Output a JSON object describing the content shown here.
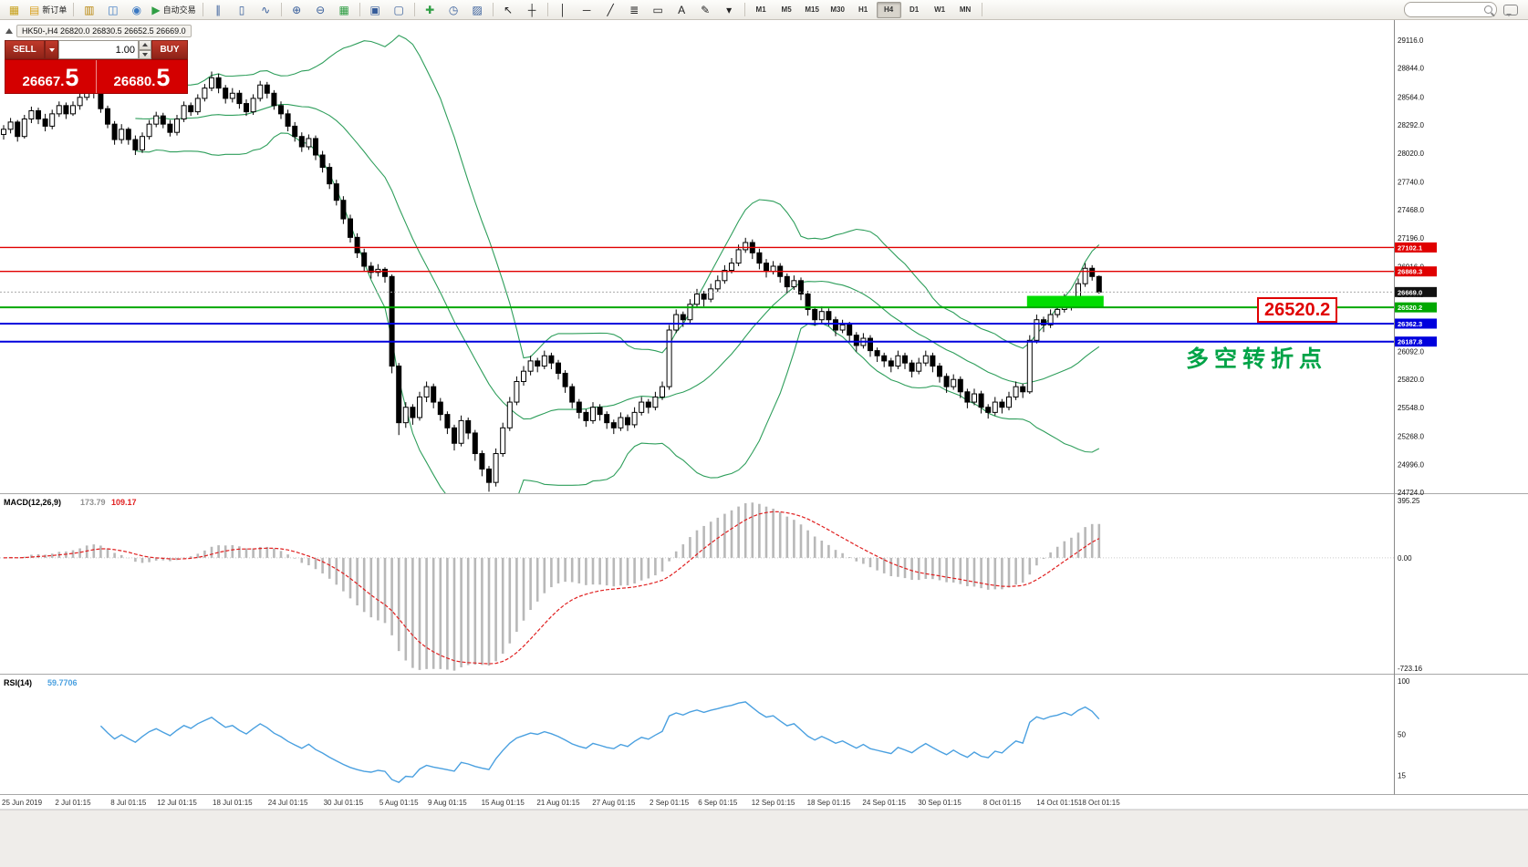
{
  "toolbar": {
    "new_order_label": "新订单",
    "auto_trading_label": "自动交易",
    "timeframes": [
      "M1",
      "M5",
      "M15",
      "M30",
      "H1",
      "H4",
      "D1",
      "W1",
      "MN"
    ],
    "active_timeframe": "H4",
    "items": [
      {
        "type": "btn",
        "name": "app-icon",
        "glyph": "▦",
        "color": "#c8a21e"
      },
      {
        "type": "btn",
        "name": "new-order-button",
        "glyph": "▤",
        "color": "#d8a01e",
        "label": "新订单"
      },
      {
        "type": "sep"
      },
      {
        "type": "btn",
        "name": "profiles-icon",
        "glyph": "▥",
        "color": "#b8860b"
      },
      {
        "type": "btn",
        "name": "market-watch-icon",
        "glyph": "◫",
        "color": "#3a78c2"
      },
      {
        "type": "btn",
        "name": "navigator-icon",
        "glyph": "◉",
        "color": "#3a78c2"
      },
      {
        "type": "btn",
        "name": "auto-trading-button",
        "glyph": "▶",
        "color": "#2f9e44",
        "label": "自动交易"
      },
      {
        "type": "sep"
      },
      {
        "type": "btn",
        "name": "bar-chart-icon",
        "glyph": "∥",
        "color": "#355c9a"
      },
      {
        "type": "btn",
        "name": "candlestick-chart-icon",
        "glyph": "▯",
        "color": "#355c9a"
      },
      {
        "type": "btn",
        "name": "line-chart-icon",
        "glyph": "∿",
        "color": "#355c9a"
      },
      {
        "type": "sep"
      },
      {
        "type": "btn",
        "name": "zoom-in-icon",
        "glyph": "⊕",
        "color": "#355c9a"
      },
      {
        "type": "btn",
        "name": "zoom-out-icon",
        "glyph": "⊖",
        "color": "#355c9a"
      },
      {
        "type": "btn",
        "name": "indicators-icon",
        "glyph": "▦",
        "color": "#2f9e44"
      },
      {
        "type": "sep"
      },
      {
        "type": "btn",
        "name": "tile-windows-icon",
        "glyph": "▣",
        "color": "#355c9a"
      },
      {
        "type": "btn",
        "name": "cascade-windows-icon",
        "glyph": "▢",
        "color": "#355c9a"
      },
      {
        "type": "sep"
      },
      {
        "type": "btn",
        "name": "add-indicator-icon",
        "glyph": "✚",
        "color": "#2f9e44"
      },
      {
        "type": "btn",
        "name": "period-icon",
        "glyph": "◷",
        "color": "#355c9a"
      },
      {
        "type": "btn",
        "name": "templates-icon",
        "glyph": "▨",
        "color": "#355c9a"
      },
      {
        "type": "sep"
      },
      {
        "type": "btn",
        "name": "cursor-icon",
        "glyph": "↖",
        "color": "#222"
      },
      {
        "type": "btn",
        "name": "crosshair-icon",
        "glyph": "┼",
        "color": "#222"
      },
      {
        "type": "sep"
      },
      {
        "type": "btn",
        "name": "vertical-line-icon",
        "glyph": "│",
        "color": "#222"
      },
      {
        "type": "btn",
        "name": "horizontal-line-icon",
        "glyph": "─",
        "color": "#222"
      },
      {
        "type": "btn",
        "name": "trendline-icon",
        "glyph": "╱",
        "color": "#222"
      },
      {
        "type": "btn",
        "name": "fibonacci-icon",
        "glyph": "≣",
        "color": "#222"
      },
      {
        "type": "btn",
        "name": "shapes-icon",
        "glyph": "▭",
        "color": "#222"
      },
      {
        "type": "btn",
        "name": "text-icon",
        "glyph": "A",
        "color": "#222"
      },
      {
        "type": "btn",
        "name": "arrow-label-icon",
        "glyph": "✎",
        "color": "#222"
      },
      {
        "type": "btn",
        "name": "objects-dropdown-icon",
        "glyph": "▾",
        "color": "#222"
      },
      {
        "type": "sep"
      },
      {
        "type": "tfs"
      },
      {
        "type": "sep"
      },
      {
        "type": "spacer"
      },
      {
        "type": "search"
      },
      {
        "type": "chat"
      }
    ]
  },
  "chart": {
    "header": {
      "symbol_period": "HK50-,H4",
      "ohlc": "26820.0 26830.5 26652.5 26669.0"
    }
  },
  "one_click": {
    "sell_label": "SELL",
    "buy_label": "BUY",
    "volume": "1.00",
    "sell_price": {
      "main": "26667.",
      "big": "5"
    },
    "buy_price": {
      "main": "26680.",
      "big": "5"
    }
  },
  "annotations": {
    "price_callout": "26520.2",
    "turning_point": "多空转折点"
  },
  "macd_panel": {
    "name": "MACD(12,26,9)",
    "main_value": "173.79",
    "signal_value": "109.17",
    "axis": [
      "395.25",
      "0.00",
      "-723.16"
    ]
  },
  "rsi_panel": {
    "name": "RSI(14)",
    "value": "59.7706",
    "axis": [
      "100",
      "50",
      "15"
    ]
  },
  "chart_data": {
    "type": "candlestick",
    "symbol": "HK50-",
    "timeframe": "H4",
    "last_ohlc": {
      "open": 26820.0,
      "high": 26830.5,
      "low": 26652.5,
      "close": 26669.0
    },
    "current_price": {
      "price": 26669.0,
      "label": "26669.0",
      "color": "#111111"
    },
    "y_axis_ticks": [
      "29116.0",
      "28844.0",
      "28564.0",
      "28292.0",
      "28020.0",
      "27740.0",
      "27468.0",
      "27196.0",
      "26916.0",
      "26644.0",
      "26372.0",
      "26092.0",
      "25820.0",
      "25548.0",
      "25268.0",
      "24996.0",
      "24724.0"
    ],
    "y_range": [
      24724.0,
      29116.0
    ],
    "x_axis_labels": [
      [
        "25 Jun 2019",
        0
      ],
      [
        "2 Jul 01:15",
        10
      ],
      [
        "8 Jul 01:15",
        18
      ],
      [
        "12 Jul 01:15",
        25
      ],
      [
        "18 Jul 01:15",
        33
      ],
      [
        "24 Jul 01:15",
        41
      ],
      [
        "30 Jul 01:15",
        49
      ],
      [
        "5 Aug 01:15",
        57
      ],
      [
        "9 Aug 01:15",
        64
      ],
      [
        "15 Aug 01:15",
        72
      ],
      [
        "21 Aug 01:15",
        80
      ],
      [
        "27 Aug 01:15",
        88
      ],
      [
        "2 Sep 01:15",
        96
      ],
      [
        "6 Sep 01:15",
        103
      ],
      [
        "12 Sep 01:15",
        111
      ],
      [
        "18 Sep 01:15",
        119
      ],
      [
        "24 Sep 01:15",
        127
      ],
      [
        "30 Sep 01:15",
        135
      ],
      [
        "8 Oct 01:15",
        144
      ],
      [
        "14 Oct 01:15",
        152
      ],
      [
        "18 Oct 01:15",
        158
      ]
    ],
    "horizontal_lines": [
      {
        "price": 27102.1,
        "label": "27102.1",
        "color": "#e00000",
        "width": 1.4
      },
      {
        "price": 26869.3,
        "label": "26869.3",
        "color": "#e00000",
        "width": 1.4
      },
      {
        "price": 26520.2,
        "label": "26520.2",
        "color": "#00a800",
        "width": 2
      },
      {
        "price": 26362.3,
        "label": "26362.3",
        "color": "#0000dd",
        "width": 2
      },
      {
        "price": 26187.8,
        "label": "26187.8",
        "color": "#0000dd",
        "width": 2
      }
    ],
    "highlight_zone": {
      "price_from": 26520.2,
      "price_to": 26632,
      "candle_from": 148,
      "candle_to": 159,
      "color": "#00dd00"
    },
    "indicators": {
      "bollinger": {
        "period": 20,
        "deviation": 2,
        "color": "#2e9e5b"
      },
      "macd": {
        "fast": 12,
        "slow": 26,
        "signal": 9,
        "value": 173.79,
        "signal_value": 109.17,
        "scale_max": 395.25,
        "scale_min": -723.16
      },
      "rsi": {
        "period": 14,
        "value": 59.7706
      }
    },
    "candles": [
      [
        28200,
        28290,
        28150,
        28250
      ],
      [
        28250,
        28360,
        28210,
        28320
      ],
      [
        28320,
        28340,
        28130,
        28180
      ],
      [
        28180,
        28390,
        28160,
        28350
      ],
      [
        28350,
        28470,
        28310,
        28430
      ],
      [
        28430,
        28460,
        28300,
        28350
      ],
      [
        28350,
        28400,
        28230,
        28280
      ],
      [
        28280,
        28440,
        28250,
        28400
      ],
      [
        28400,
        28520,
        28370,
        28480
      ],
      [
        28480,
        28510,
        28350,
        28400
      ],
      [
        28400,
        28520,
        28380,
        28480
      ],
      [
        28480,
        28600,
        28440,
        28560
      ],
      [
        28560,
        28720,
        28530,
        28680
      ],
      [
        28680,
        28710,
        28550,
        28600
      ],
      [
        28600,
        28640,
        28410,
        28450
      ],
      [
        28450,
        28480,
        28260,
        28300
      ],
      [
        28300,
        28330,
        28100,
        28150
      ],
      [
        28150,
        28300,
        28110,
        28250
      ],
      [
        28250,
        28270,
        28100,
        28150
      ],
      [
        28150,
        28190,
        28000,
        28050
      ],
      [
        28050,
        28220,
        28020,
        28180
      ],
      [
        28180,
        28340,
        28150,
        28300
      ],
      [
        28300,
        28420,
        28270,
        28380
      ],
      [
        28380,
        28410,
        28260,
        28300
      ],
      [
        28300,
        28340,
        28180,
        28220
      ],
      [
        28220,
        28390,
        28190,
        28350
      ],
      [
        28350,
        28520,
        28320,
        28480
      ],
      [
        28480,
        28510,
        28380,
        28420
      ],
      [
        28420,
        28590,
        28390,
        28550
      ],
      [
        28550,
        28690,
        28520,
        28650
      ],
      [
        28650,
        28810,
        28620,
        28750
      ],
      [
        28750,
        28790,
        28600,
        28650
      ],
      [
        28650,
        28680,
        28500,
        28550
      ],
      [
        28550,
        28650,
        28510,
        28600
      ],
      [
        28600,
        28630,
        28450,
        28500
      ],
      [
        28500,
        28540,
        28380,
        28420
      ],
      [
        28420,
        28590,
        28390,
        28550
      ],
      [
        28550,
        28720,
        28520,
        28680
      ],
      [
        28680,
        28710,
        28550,
        28600
      ],
      [
        28600,
        28630,
        28440,
        28480
      ],
      [
        28480,
        28520,
        28350,
        28400
      ],
      [
        28400,
        28440,
        28230,
        28280
      ],
      [
        28280,
        28320,
        28130,
        28180
      ],
      [
        28180,
        28220,
        28030,
        28080
      ],
      [
        28080,
        28200,
        28050,
        28160
      ],
      [
        28160,
        28190,
        27950,
        28000
      ],
      [
        28000,
        28040,
        27830,
        27880
      ],
      [
        27880,
        27920,
        27670,
        27720
      ],
      [
        27720,
        27760,
        27510,
        27560
      ],
      [
        27560,
        27600,
        27330,
        27380
      ],
      [
        27380,
        27420,
        27150,
        27200
      ],
      [
        27200,
        27240,
        27000,
        27050
      ],
      [
        27050,
        27090,
        26870,
        26920
      ],
      [
        26920,
        26960,
        26800,
        26860
      ],
      [
        26860,
        26940,
        26820,
        26890
      ],
      [
        26890,
        26910,
        26760,
        26820
      ],
      [
        26820,
        26840,
        25880,
        25950
      ],
      [
        25950,
        25980,
        25280,
        25400
      ],
      [
        25400,
        25600,
        25350,
        25550
      ],
      [
        25550,
        25580,
        25380,
        25450
      ],
      [
        25450,
        25700,
        25420,
        25650
      ],
      [
        25650,
        25800,
        25600,
        25750
      ],
      [
        25750,
        25780,
        25540,
        25600
      ],
      [
        25600,
        25640,
        25420,
        25480
      ],
      [
        25480,
        25510,
        25290,
        25350
      ],
      [
        25350,
        25380,
        25130,
        25200
      ],
      [
        25200,
        25470,
        25170,
        25420
      ],
      [
        25420,
        25450,
        25240,
        25300
      ],
      [
        25300,
        25330,
        25030,
        25100
      ],
      [
        25100,
        25130,
        24880,
        24950
      ],
      [
        24950,
        24980,
        24730,
        24820
      ],
      [
        24820,
        25150,
        24780,
        25100
      ],
      [
        25100,
        25400,
        25070,
        25350
      ],
      [
        25350,
        25650,
        25320,
        25600
      ],
      [
        25600,
        25850,
        25570,
        25800
      ],
      [
        25800,
        25950,
        25760,
        25900
      ],
      [
        25900,
        26050,
        25860,
        26000
      ],
      [
        26000,
        26030,
        25890,
        25950
      ],
      [
        25950,
        26100,
        25920,
        26050
      ],
      [
        26050,
        26080,
        25920,
        25980
      ],
      [
        25980,
        26010,
        25820,
        25880
      ],
      [
        25880,
        25910,
        25690,
        25750
      ],
      [
        25750,
        25780,
        25540,
        25600
      ],
      [
        25600,
        25630,
        25440,
        25500
      ],
      [
        25500,
        25530,
        25360,
        25420
      ],
      [
        25420,
        25600,
        25390,
        25550
      ],
      [
        25550,
        25580,
        25420,
        25480
      ],
      [
        25480,
        25510,
        25340,
        25400
      ],
      [
        25400,
        25430,
        25290,
        25350
      ],
      [
        25350,
        25500,
        25320,
        25450
      ],
      [
        25450,
        25480,
        25320,
        25380
      ],
      [
        25380,
        25550,
        25350,
        25500
      ],
      [
        25500,
        25650,
        25470,
        25600
      ],
      [
        25600,
        25630,
        25490,
        25550
      ],
      [
        25550,
        25700,
        25520,
        25650
      ],
      [
        25650,
        25800,
        25620,
        25750
      ],
      [
        25750,
        26350,
        25720,
        26300
      ],
      [
        26300,
        26500,
        26270,
        26450
      ],
      [
        26450,
        26480,
        26330,
        26400
      ],
      [
        26400,
        26600,
        26370,
        26550
      ],
      [
        26550,
        26700,
        26520,
        26650
      ],
      [
        26650,
        26680,
        26530,
        26600
      ],
      [
        26600,
        26750,
        26570,
        26700
      ],
      [
        26700,
        26830,
        26670,
        26780
      ],
      [
        26780,
        26930,
        26750,
        26880
      ],
      [
        26880,
        27000,
        26850,
        26950
      ],
      [
        26950,
        27130,
        26920,
        27080
      ],
      [
        27080,
        27196,
        27050,
        27150
      ],
      [
        27150,
        27180,
        26990,
        27050
      ],
      [
        27050,
        27090,
        26890,
        26950
      ],
      [
        26950,
        26990,
        26810,
        26870
      ],
      [
        26870,
        26970,
        26840,
        26920
      ],
      [
        26920,
        26950,
        26760,
        26820
      ],
      [
        26820,
        26850,
        26660,
        26720
      ],
      [
        26720,
        26830,
        26690,
        26780
      ],
      [
        26780,
        26810,
        26590,
        26650
      ],
      [
        26650,
        26680,
        26440,
        26500
      ],
      [
        26500,
        26530,
        26340,
        26400
      ],
      [
        26400,
        26530,
        26370,
        26480
      ],
      [
        26480,
        26510,
        26340,
        26400
      ],
      [
        26400,
        26430,
        26240,
        26300
      ],
      [
        26300,
        26400,
        26270,
        26350
      ],
      [
        26350,
        26380,
        26190,
        26250
      ],
      [
        26250,
        26280,
        26090,
        26150
      ],
      [
        26150,
        26270,
        26120,
        26220
      ],
      [
        26220,
        26250,
        26040,
        26100
      ],
      [
        26100,
        26130,
        25990,
        26050
      ],
      [
        26050,
        26080,
        25940,
        26000
      ],
      [
        26000,
        26030,
        25890,
        25950
      ],
      [
        25950,
        26100,
        25920,
        26050
      ],
      [
        26050,
        26080,
        25920,
        25980
      ],
      [
        25980,
        26010,
        25840,
        25900
      ],
      [
        25900,
        26030,
        25870,
        25980
      ],
      [
        25980,
        26100,
        25950,
        26050
      ],
      [
        26050,
        26080,
        25890,
        25950
      ],
      [
        25950,
        25980,
        25790,
        25850
      ],
      [
        25850,
        25880,
        25690,
        25750
      ],
      [
        25750,
        25870,
        25720,
        25820
      ],
      [
        25820,
        25850,
        25640,
        25700
      ],
      [
        25700,
        25730,
        25540,
        25600
      ],
      [
        25600,
        25730,
        25570,
        25680
      ],
      [
        25680,
        25710,
        25490,
        25550
      ],
      [
        25550,
        25580,
        25440,
        25500
      ],
      [
        25500,
        25650,
        25470,
        25600
      ],
      [
        25600,
        25630,
        25490,
        25550
      ],
      [
        25550,
        25700,
        25520,
        25650
      ],
      [
        25650,
        25800,
        25620,
        25750
      ],
      [
        25750,
        25780,
        25640,
        25700
      ],
      [
        25700,
        26250,
        25680,
        26200
      ],
      [
        26200,
        26450,
        26170,
        26400
      ],
      [
        26400,
        26430,
        26280,
        26350
      ],
      [
        26350,
        26500,
        26320,
        26450
      ],
      [
        26450,
        26550,
        26420,
        26500
      ],
      [
        26500,
        26650,
        26470,
        26600
      ],
      [
        26600,
        26630,
        26490,
        26550
      ],
      [
        26550,
        26800,
        26520,
        26750
      ],
      [
        26750,
        26950,
        26720,
        26900
      ],
      [
        26900,
        26930,
        26780,
        26820
      ],
      [
        26820,
        26830.5,
        26652.5,
        26669
      ]
    ]
  }
}
